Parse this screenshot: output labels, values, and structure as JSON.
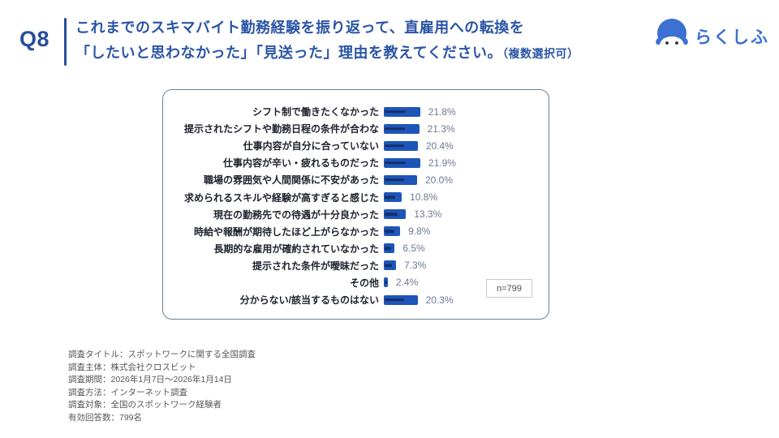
{
  "header": {
    "q_label": "Q8",
    "title_line1": "これまでのスキマバイト勤務経験を振り返って、直雇用への転換を",
    "title_line2": "「したいと思わなかった」「見送った」理由を教えてください。",
    "title_suffix": "（複数選択可）",
    "title_color": "#2b55a5"
  },
  "logo": {
    "text": "らくしふ",
    "icon": "penguin-mascot-icon",
    "brand_color": "#3c70d2"
  },
  "chart_data": {
    "type": "bar",
    "orientation": "horizontal",
    "title": "",
    "xlabel": "",
    "ylabel": "",
    "xlim": [
      0,
      24
    ],
    "grid": false,
    "legend": "none",
    "bar_color": "#1e55b8",
    "bar_stripe_color": "#132f6b",
    "value_label_color": "#6d7890",
    "categories": [
      "シフト制で働きたくなかった",
      "提示されたシフトや勤務日程の条件が合わな",
      "仕事内容が自分に合っていない",
      "仕事内容が辛い・疲れるものだった",
      "職場の雰囲気や人間関係に不安があった",
      "求められるスキルや経験が高すぎると感じた",
      "現在の勤務先での待遇が十分良かった",
      "時給や報酬が期待したほど上がらなかった",
      "長期的な雇用が確約されていなかった",
      "提示された条件が曖昧だった",
      "その他",
      "分からない/該当するものはない"
    ],
    "values": [
      21.8,
      21.3,
      20.4,
      21.9,
      20.0,
      10.8,
      13.3,
      9.8,
      6.5,
      7.3,
      2.4,
      20.3
    ],
    "value_labels": [
      "21.8%",
      "21.3%",
      "20.4%",
      "21.9%",
      "20.0%",
      "10.8%",
      "13.3%",
      "9.8%",
      "6.5%",
      "7.3%",
      "2.4%",
      "20.3%"
    ],
    "n_label": "n=799"
  },
  "footer": {
    "lines": [
      "調査タイトル：スポットワークに関する全国調査",
      "調査主体：株式会社クロスビット",
      "調査期間：2026年1月7日～2026年1月14日",
      "調査方法：インターネット調査",
      "調査対象：全国のスポットワーク経験者",
      "有効回答数：799名"
    ]
  }
}
